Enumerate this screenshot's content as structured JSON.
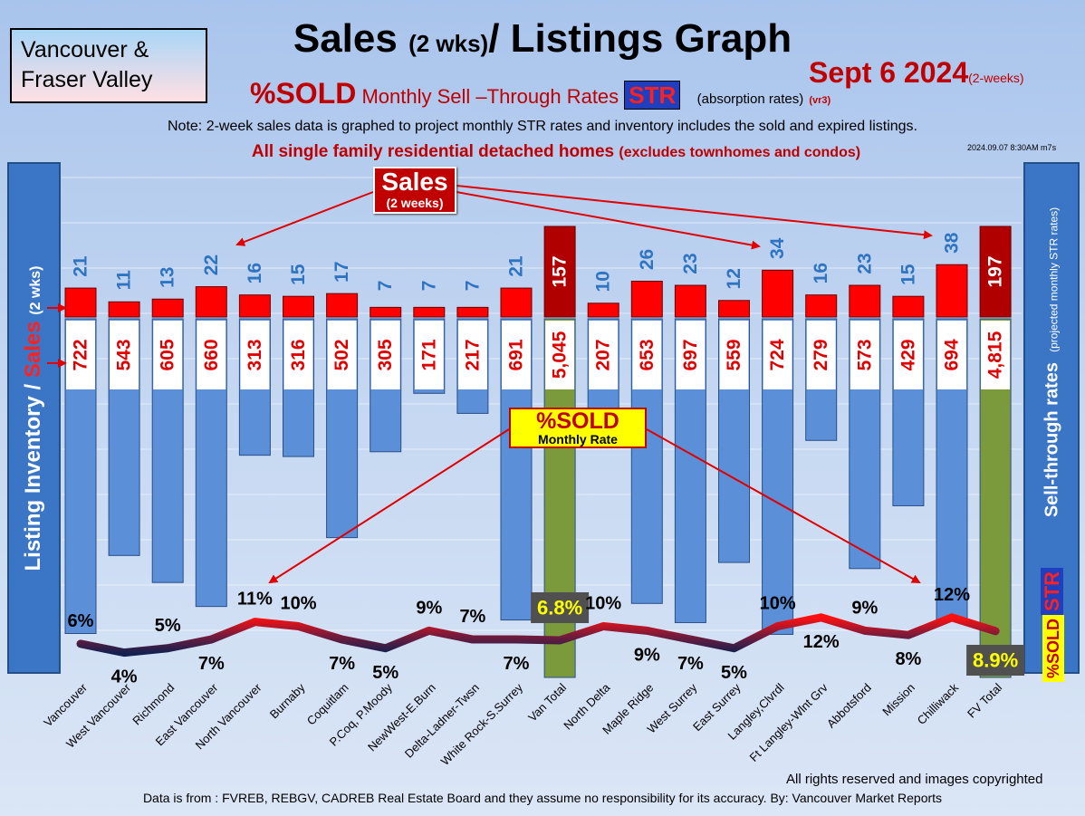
{
  "header": {
    "region_line1": "Vancouver &",
    "region_line2": "Fraser Valley",
    "title_main": "Sales",
    "title_paren": "(2 wks)",
    "title_rest": "/ Listings Graph",
    "date": "Sept 6  2024",
    "date_note": "(2-weeks)",
    "subtitle_sold": "%SOLD",
    "subtitle_text": "Monthly Sell –Through Rates",
    "subtitle_str": "STR",
    "subtitle_absorption": "(absorption rates)",
    "subtitle_version": "(vr3)",
    "note": "Note: 2-week sales data is graphed to project monthly STR rates and inventory includes the sold and expired listings.",
    "scope_main": "All single family residential detached homes",
    "scope_sub": "(excludes townhomes and condos)",
    "timestamp": "2024.09.07 8:30AM m7s"
  },
  "side_labels": {
    "left_inventory": "Listing Inventory / ",
    "left_sales": "Sales",
    "left_period": "(2 wks)",
    "right_main": "Sell-through rates",
    "right_sub": "(projected monthly STR rates)",
    "right_pct": "%SOLD",
    "right_str": "STR"
  },
  "callouts": {
    "sales_title": "Sales",
    "sales_sub": "(2 weeks)",
    "pct_title": "%SOLD",
    "pct_sub": "Monthly Rate"
  },
  "footer": {
    "copyright": "All rights reserved and  images copyrighted",
    "source": "Data is from : FVREB, REBGV, CADREB Real Estate Board and they assume no responsibility for its accuracy. By: Vancouver Market Reports"
  },
  "colors": {
    "sales_bar": "#ff0000",
    "total_sales_bar": "#b00000",
    "inventory_bar": "#5b8fd8",
    "total_inventory_bar": "#7a9a3c",
    "sales_label": "#2e74c0",
    "inventory_label": "#e00000",
    "str_line_low": "#16204e",
    "str_line_high": "#ff1010"
  },
  "chart_data": {
    "type": "bar",
    "categories": [
      "Vancouver",
      "West Vancouver",
      "Richmond",
      "East Vancouver",
      "North Vancouver",
      "Burnaby",
      "Coquitlam",
      "P.Coq, P.Moody",
      "NewWest-E.Burn",
      "Delta-Ladner-Twsn",
      "White Rock-S.Surrey",
      "Van Total",
      "North Delta",
      "Maple Ridge",
      "West Surrey",
      "East Surrey",
      "Langley,Clvrdl",
      "Ft Langley-Wlnt Grv",
      "Abbotsford",
      "Mission",
      "Chilliwack",
      "FV Total"
    ],
    "series": [
      {
        "name": "Sales",
        "values": [
          21,
          11,
          13,
          22,
          16,
          15,
          17,
          7,
          7,
          7,
          21,
          157,
          10,
          26,
          23,
          12,
          34,
          16,
          23,
          15,
          38,
          197
        ]
      },
      {
        "name": "Listing Inventory",
        "values": [
          722,
          543,
          605,
          660,
          313,
          316,
          502,
          305,
          171,
          217,
          691,
          5045,
          207,
          653,
          697,
          559,
          724,
          279,
          573,
          429,
          694,
          4815
        ]
      },
      {
        "name": "%SOLD",
        "values": [
          6,
          4,
          5,
          7,
          11,
          10,
          7,
          5,
          9,
          7,
          7,
          6.8,
          10,
          9,
          7,
          5,
          10,
          12,
          9,
          8,
          12,
          8.9
        ]
      }
    ],
    "inventory_labels": [
      "722",
      "543",
      "605",
      "660",
      "313",
      "316",
      "502",
      "305",
      "171",
      "217",
      "691",
      "5,045",
      "207",
      "653",
      "697",
      "559",
      "724",
      "279",
      "573",
      "429",
      "694",
      "4,815"
    ],
    "str_labels": [
      "6%",
      "4%",
      "5%",
      "7%",
      "11%",
      "10%",
      "7%",
      "5%",
      "9%",
      "7%",
      "7%",
      "6.8%",
      "10%",
      "9%",
      "7%",
      "5%",
      "10%",
      "12%",
      "9%",
      "8%",
      "12%",
      "8.9%"
    ],
    "total_categories": [
      "Van Total",
      "FV Total"
    ]
  }
}
